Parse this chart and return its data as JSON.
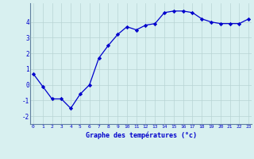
{
  "x": [
    0,
    1,
    2,
    3,
    4,
    5,
    6,
    7,
    8,
    9,
    10,
    11,
    12,
    13,
    14,
    15,
    16,
    17,
    18,
    19,
    20,
    21,
    22,
    23
  ],
  "y": [
    0.7,
    -0.1,
    -0.9,
    -0.9,
    -1.5,
    -0.6,
    0.0,
    1.7,
    2.5,
    3.2,
    3.7,
    3.5,
    3.8,
    3.9,
    4.6,
    4.7,
    4.7,
    4.6,
    4.2,
    4.0,
    3.9,
    3.9,
    3.9,
    4.2
  ],
  "xlim": [
    -0.3,
    23.3
  ],
  "ylim": [
    -2.5,
    5.2
  ],
  "yticks": [
    -2,
    -1,
    0,
    1,
    2,
    3,
    4
  ],
  "xticks": [
    0,
    1,
    2,
    3,
    4,
    5,
    6,
    7,
    8,
    9,
    10,
    11,
    12,
    13,
    14,
    15,
    16,
    17,
    18,
    19,
    20,
    21,
    22,
    23
  ],
  "xlabel": "Graphe des températures (°c)",
  "line_color": "#0000cc",
  "marker": "D",
  "marker_size": 2.2,
  "bg_color": "#d8f0f0",
  "grid_color": "#b8d4d4",
  "axis_color": "#6080a0"
}
